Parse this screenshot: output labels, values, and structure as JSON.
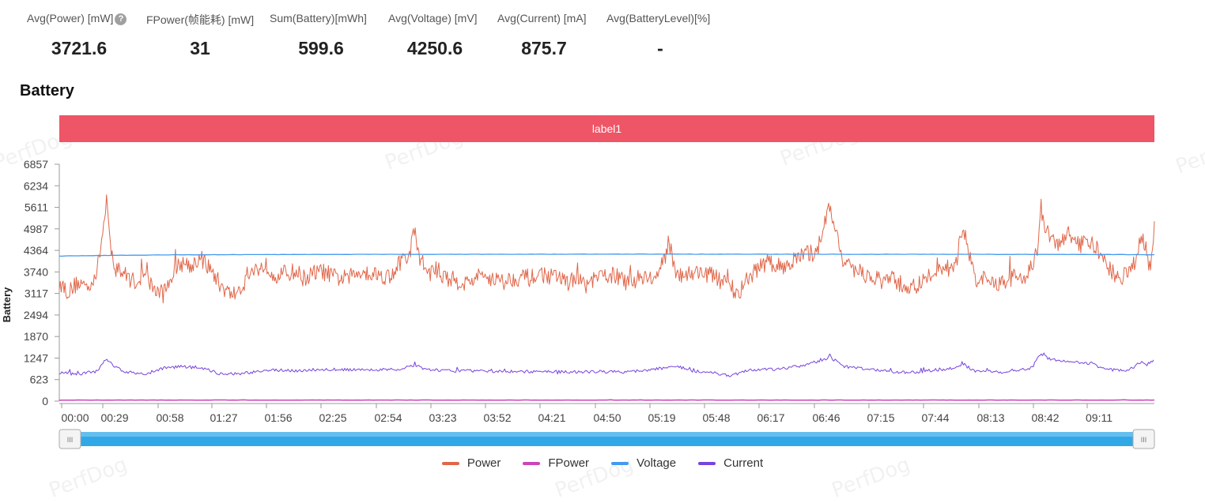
{
  "summary": [
    {
      "label": "Avg(Power) [mW]",
      "value": "3721.6",
      "help": "?"
    },
    {
      "label": "FPower(帧能耗) [mW]",
      "value": "31"
    },
    {
      "label": "Sum(Battery)[mWh]",
      "value": "599.6"
    },
    {
      "label": "Avg(Voltage) [mV]",
      "value": "4250.6"
    },
    {
      "label": "Avg(Current) [mA]",
      "value": "875.7"
    },
    {
      "label": "Avg(BatteryLevel)[%]",
      "value": "-"
    }
  ],
  "section_title": "Battery",
  "watermark": "PerfDog",
  "label_bar": {
    "text": "label1",
    "color": "#EE5566"
  },
  "slider": {
    "start_handle": "III",
    "end_handle": "III",
    "start_fraction": 0,
    "end_fraction": 1,
    "color": "#30A8E8"
  },
  "chart_data": {
    "type": "line",
    "ylabel": "Battery",
    "ylim": [
      0,
      6857
    ],
    "y_ticks": [
      "0",
      "623",
      "1247",
      "1870",
      "2494",
      "3117",
      "3740",
      "4364",
      "4987",
      "5611",
      "6234",
      "6857"
    ],
    "x_ticks": [
      "00:00",
      "00:29",
      "00:58",
      "01:27",
      "01:56",
      "02:25",
      "02:54",
      "03:23",
      "03:52",
      "04:21",
      "04:50",
      "05:19",
      "05:48",
      "06:17",
      "06:46",
      "07:15",
      "07:44",
      "08:13",
      "08:42",
      "09:11"
    ],
    "x_range_seconds": [
      0,
      580
    ],
    "legend_position": "bottom",
    "series": [
      {
        "name": "Power",
        "color": "#E0674A",
        "width": 1,
        "anchors": [
          [
            0,
            3450
          ],
          [
            5,
            3150
          ],
          [
            10,
            3450
          ],
          [
            15,
            3300
          ],
          [
            20,
            3750
          ],
          [
            22,
            4500
          ],
          [
            24,
            5300
          ],
          [
            25,
            5900
          ],
          [
            27,
            4400
          ],
          [
            30,
            3850
          ],
          [
            35,
            3650
          ],
          [
            40,
            3450
          ],
          [
            45,
            3650
          ],
          [
            50,
            3250
          ],
          [
            55,
            3100
          ],
          [
            60,
            3700
          ],
          [
            65,
            4000
          ],
          [
            70,
            3950
          ],
          [
            75,
            4150
          ],
          [
            80,
            3800
          ],
          [
            85,
            3400
          ],
          [
            90,
            3100
          ],
          [
            95,
            3150
          ],
          [
            100,
            3650
          ],
          [
            105,
            3850
          ],
          [
            110,
            3900
          ],
          [
            115,
            3650
          ],
          [
            120,
            3700
          ],
          [
            125,
            3750
          ],
          [
            130,
            3550
          ],
          [
            135,
            3700
          ],
          [
            140,
            3750
          ],
          [
            145,
            3600
          ],
          [
            150,
            3550
          ],
          [
            155,
            3600
          ],
          [
            160,
            3800
          ],
          [
            165,
            3700
          ],
          [
            170,
            3650
          ],
          [
            175,
            3600
          ],
          [
            180,
            4000
          ],
          [
            185,
            4150
          ],
          [
            188,
            4950
          ],
          [
            190,
            4300
          ],
          [
            195,
            3700
          ],
          [
            200,
            3800
          ],
          [
            205,
            3550
          ],
          [
            210,
            3500
          ],
          [
            215,
            3400
          ],
          [
            220,
            3550
          ],
          [
            225,
            3650
          ],
          [
            230,
            3550
          ],
          [
            235,
            3450
          ],
          [
            240,
            3550
          ],
          [
            245,
            3600
          ],
          [
            250,
            3550
          ],
          [
            255,
            3700
          ],
          [
            260,
            3600
          ],
          [
            265,
            3550
          ],
          [
            270,
            3450
          ],
          [
            275,
            3500
          ],
          [
            280,
            3350
          ],
          [
            285,
            3550
          ],
          [
            290,
            3650
          ],
          [
            295,
            3650
          ],
          [
            300,
            3400
          ],
          [
            305,
            3500
          ],
          [
            310,
            3650
          ],
          [
            315,
            3500
          ],
          [
            320,
            4000
          ],
          [
            323,
            4650
          ],
          [
            326,
            3800
          ],
          [
            330,
            3650
          ],
          [
            335,
            3700
          ],
          [
            340,
            3750
          ],
          [
            345,
            3650
          ],
          [
            350,
            3500
          ],
          [
            355,
            3350
          ],
          [
            360,
            3100
          ],
          [
            365,
            3550
          ],
          [
            370,
            3850
          ],
          [
            375,
            4000
          ],
          [
            380,
            3900
          ],
          [
            385,
            3950
          ],
          [
            390,
            4100
          ],
          [
            395,
            4250
          ],
          [
            400,
            4300
          ],
          [
            403,
            4600
          ],
          [
            405,
            5250
          ],
          [
            408,
            5550
          ],
          [
            410,
            5100
          ],
          [
            413,
            4700
          ],
          [
            415,
            4000
          ],
          [
            420,
            3750
          ],
          [
            425,
            3700
          ],
          [
            430,
            3600
          ],
          [
            435,
            3450
          ],
          [
            440,
            3550
          ],
          [
            445,
            3400
          ],
          [
            450,
            3300
          ],
          [
            455,
            3350
          ],
          [
            460,
            3550
          ],
          [
            465,
            3900
          ],
          [
            470,
            3850
          ],
          [
            475,
            4000
          ],
          [
            478,
            4900
          ],
          [
            480,
            4800
          ],
          [
            483,
            4000
          ],
          [
            485,
            3600
          ],
          [
            490,
            3500
          ],
          [
            495,
            3400
          ],
          [
            500,
            3450
          ],
          [
            505,
            3600
          ],
          [
            510,
            3550
          ],
          [
            515,
            3900
          ],
          [
            518,
            4350
          ],
          [
            520,
            5600
          ],
          [
            522,
            5000
          ],
          [
            525,
            4700
          ],
          [
            530,
            4500
          ],
          [
            535,
            4900
          ],
          [
            540,
            4500
          ],
          [
            545,
            4650
          ],
          [
            550,
            4350
          ],
          [
            555,
            3900
          ],
          [
            560,
            3600
          ],
          [
            565,
            3650
          ],
          [
            570,
            3900
          ],
          [
            573,
            4800
          ],
          [
            576,
            4300
          ],
          [
            578,
            3800
          ],
          [
            580,
            4950
          ]
        ]
      },
      {
        "name": "FPower",
        "color": "#CC44BB",
        "width": 1.5,
        "anchors": [
          [
            0,
            31
          ],
          [
            100,
            31
          ],
          [
            200,
            31
          ],
          [
            300,
            31
          ],
          [
            400,
            31
          ],
          [
            500,
            31
          ],
          [
            580,
            31
          ]
        ]
      },
      {
        "name": "Voltage",
        "color": "#4499EE",
        "width": 1.3,
        "anchors": [
          [
            0,
            4200
          ],
          [
            20,
            4215
          ],
          [
            60,
            4235
          ],
          [
            120,
            4245
          ],
          [
            200,
            4250
          ],
          [
            300,
            4255
          ],
          [
            400,
            4252
          ],
          [
            480,
            4250
          ],
          [
            540,
            4245
          ],
          [
            580,
            4238
          ]
        ]
      },
      {
        "name": "Current",
        "color": "#7744DD",
        "width": 1,
        "anchors": [
          [
            0,
            820
          ],
          [
            10,
            780
          ],
          [
            20,
            870
          ],
          [
            25,
            1250
          ],
          [
            28,
            1050
          ],
          [
            35,
            850
          ],
          [
            45,
            780
          ],
          [
            55,
            950
          ],
          [
            65,
            1000
          ],
          [
            75,
            960
          ],
          [
            85,
            800
          ],
          [
            95,
            780
          ],
          [
            110,
            900
          ],
          [
            125,
            880
          ],
          [
            140,
            920
          ],
          [
            160,
            900
          ],
          [
            180,
            930
          ],
          [
            188,
            1050
          ],
          [
            195,
            900
          ],
          [
            210,
            880
          ],
          [
            240,
            860
          ],
          [
            270,
            850
          ],
          [
            300,
            850
          ],
          [
            320,
            950
          ],
          [
            325,
            1050
          ],
          [
            335,
            880
          ],
          [
            350,
            790
          ],
          [
            355,
            720
          ],
          [
            365,
            900
          ],
          [
            380,
            920
          ],
          [
            395,
            1050
          ],
          [
            405,
            1200
          ],
          [
            408,
            1300
          ],
          [
            415,
            1000
          ],
          [
            430,
            920
          ],
          [
            450,
            820
          ],
          [
            465,
            910
          ],
          [
            475,
            950
          ],
          [
            478,
            1070
          ],
          [
            485,
            880
          ],
          [
            500,
            850
          ],
          [
            515,
            960
          ],
          [
            520,
            1380
          ],
          [
            525,
            1200
          ],
          [
            535,
            1150
          ],
          [
            545,
            1100
          ],
          [
            555,
            920
          ],
          [
            565,
            870
          ],
          [
            573,
            1120
          ],
          [
            576,
            1050
          ],
          [
            580,
            1200
          ]
        ]
      }
    ]
  }
}
